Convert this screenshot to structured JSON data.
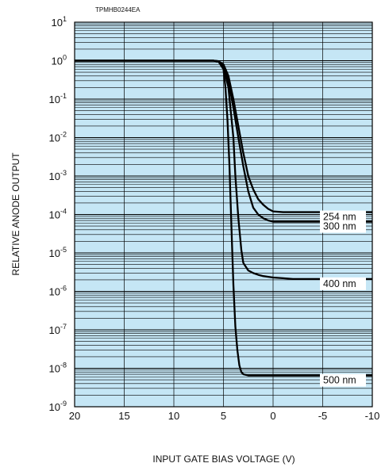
{
  "chart_data": {
    "type": "line",
    "code": "TPMHB0244EA",
    "xlabel": "INPUT GATE BIAS VOLTAGE (V)",
    "ylabel": "RELATIVE ANODE OUTPUT",
    "xlim": [
      20,
      -10
    ],
    "ylim_exponent": [
      -9,
      1
    ],
    "y_scale": "log",
    "grid": true,
    "x_ticks": [
      "20",
      "15",
      "10",
      "5",
      "0",
      "-5",
      "-10"
    ],
    "x_tick_values": [
      20,
      15,
      10,
      5,
      0,
      -5,
      -10
    ],
    "y_ticks": [
      {
        "base": "10",
        "exp": "1"
      },
      {
        "base": "10",
        "exp": "0"
      },
      {
        "base": "10",
        "exp": "-1"
      },
      {
        "base": "10",
        "exp": "-2"
      },
      {
        "base": "10",
        "exp": "-3"
      },
      {
        "base": "10",
        "exp": "-4"
      },
      {
        "base": "10",
        "exp": "-5"
      },
      {
        "base": "10",
        "exp": "-6"
      },
      {
        "base": "10",
        "exp": "-7"
      },
      {
        "base": "10",
        "exp": "-8"
      },
      {
        "base": "10",
        "exp": "-9"
      }
    ],
    "y_tick_exponents": [
      1,
      0,
      -1,
      -2,
      -3,
      -4,
      -5,
      -6,
      -7,
      -8,
      -9
    ],
    "colors": {
      "background": "#c5e6f5",
      "grid": "#000000",
      "series": "#000000"
    },
    "series": [
      {
        "name": "254 nm",
        "x": [
          20,
          7,
          6,
          5.5,
          5,
          4.5,
          4,
          3.5,
          3,
          2.5,
          2,
          1.5,
          1,
          0.5,
          0,
          -1,
          -2,
          -5,
          -10
        ],
        "y": [
          1,
          1,
          1,
          0.97,
          0.8,
          0.4,
          0.1,
          0.02,
          0.004,
          0.001,
          0.00045,
          0.00025,
          0.00018,
          0.00014,
          0.00012,
          0.000115,
          0.000115,
          0.000115,
          0.000115
        ]
      },
      {
        "name": "300 nm",
        "x": [
          20,
          7,
          6,
          5.5,
          5,
          4.5,
          4,
          3.5,
          3,
          2.5,
          2,
          1.5,
          1,
          0.5,
          0,
          -1,
          -2,
          -5,
          -10
        ],
        "y": [
          1,
          1,
          1,
          0.97,
          0.75,
          0.3,
          0.06,
          0.01,
          0.0018,
          0.0004,
          0.00015,
          0.0001,
          8e-05,
          7e-05,
          6.5e-05,
          6.5e-05,
          6.5e-05,
          6.5e-05,
          6.5e-05
        ]
      },
      {
        "name": "400 nm",
        "x": [
          20,
          7,
          6,
          5.5,
          5,
          4.5,
          4,
          3.8,
          3.5,
          3.2,
          3,
          2.5,
          2,
          1.5,
          1,
          0,
          -1,
          -2,
          -5,
          -10
        ],
        "y": [
          1,
          1,
          1,
          0.95,
          0.7,
          0.2,
          0.01,
          0.001,
          8e-05,
          1.2e-05,
          5.5e-06,
          3.5e-06,
          3e-06,
          2.7e-06,
          2.5e-06,
          2.3e-06,
          2.2e-06,
          2.1e-06,
          2.1e-06,
          2.1e-06
        ]
      },
      {
        "name": "500 nm",
        "x": [
          20,
          7,
          6,
          5.5,
          5,
          4.8,
          4.6,
          4.4,
          4.2,
          4,
          3.8,
          3.6,
          3.4,
          3.2,
          3,
          2.5,
          2,
          0,
          -5,
          -10
        ],
        "y": [
          1,
          1,
          1,
          0.95,
          0.6,
          0.2,
          0.03,
          0.002,
          5e-05,
          1.5e-06,
          1.2e-07,
          3e-08,
          1.2e-08,
          8e-09,
          7e-09,
          6.5e-09,
          6.5e-09,
          6.5e-09,
          6.5e-09,
          6.5e-09
        ]
      }
    ]
  }
}
